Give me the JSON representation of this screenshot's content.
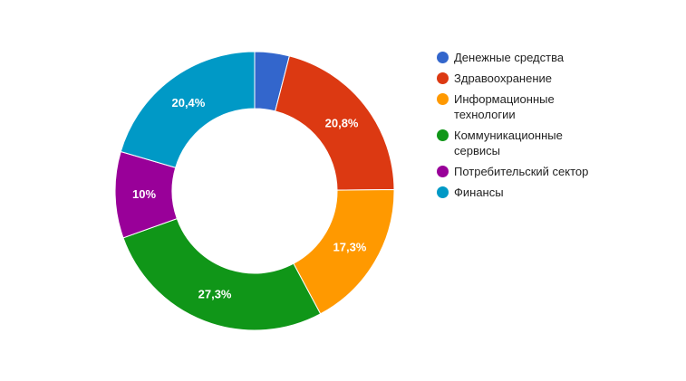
{
  "chart_data": {
    "type": "pie",
    "donut": true,
    "legend_position": "right",
    "slices": [
      {
        "label": "Денежные средства",
        "value": 4.0,
        "value_label": "",
        "color": "#3366cc"
      },
      {
        "label": "Здравоохранение",
        "value": 20.8,
        "value_label": "20,8%",
        "color": "#dc3912"
      },
      {
        "label": "Информационные технологии",
        "value": 17.3,
        "value_label": "17,3%",
        "color": "#ff9900"
      },
      {
        "label": "Коммуникационные сервисы",
        "value": 27.3,
        "value_label": "27,3%",
        "color": "#109618"
      },
      {
        "label": "Потребительский сектор",
        "value": 10.0,
        "value_label": "10%",
        "color": "#990099"
      },
      {
        "label": "Финансы",
        "value": 20.4,
        "value_label": "20,4%",
        "color": "#0099c6"
      }
    ]
  },
  "legend": {
    "items": [
      {
        "lines": [
          "Денежные средства"
        ],
        "color": "#3366cc"
      },
      {
        "lines": [
          "Здравоохранение"
        ],
        "color": "#dc3912"
      },
      {
        "lines": [
          "Информационные",
          "технологии"
        ],
        "color": "#ff9900"
      },
      {
        "lines": [
          "Коммуникационные",
          "сервисы"
        ],
        "color": "#109618"
      },
      {
        "lines": [
          "Потребительский сектор"
        ],
        "color": "#990099"
      },
      {
        "lines": [
          "Финансы"
        ],
        "color": "#0099c6"
      }
    ]
  }
}
